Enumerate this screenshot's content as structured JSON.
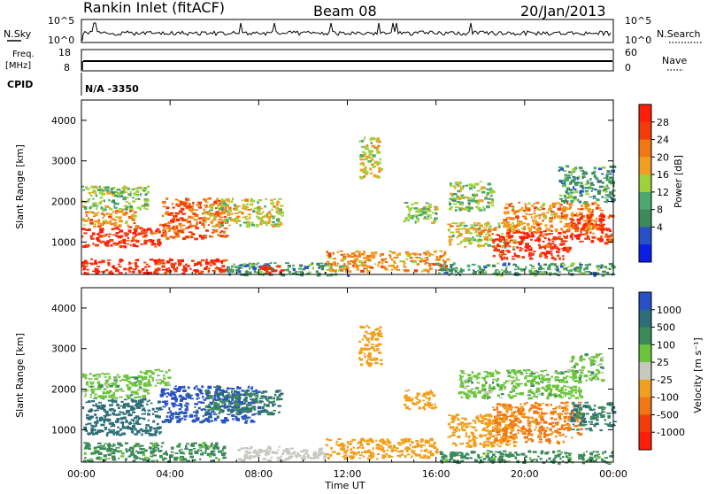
{
  "header": {
    "station": "Rankin Inlet (fitACF)",
    "beam": "Beam 08",
    "date": "20/Jan/2013"
  },
  "top_panels": {
    "nsky_label": "N.Sky",
    "nsearch_label": "N.Search",
    "noise_ticks": [
      "10^5",
      "10^0"
    ],
    "freq_label_1": "Freq.",
    "freq_label_2": "[MHz]",
    "freq_ticks": [
      "18",
      "8"
    ],
    "nave_label": "Nave",
    "nave_ticks": [
      "60",
      "0"
    ],
    "cpid_label": "CPID",
    "cpid_value": "N/A -3350"
  },
  "colors": {
    "power": [
      "#0a1ee6",
      "#2a50c8",
      "#3c8a5a",
      "#4ca86c",
      "#9ed23c",
      "#f0a01e",
      "#f07814",
      "#f03c0a",
      "#ff1e0a"
    ],
    "velocity": [
      "#2a50c8",
      "#2d6e78",
      "#3c8a5a",
      "#6cc43c",
      "#c8c8c0",
      "#f0a01e",
      "#f07814",
      "#f03c0a",
      "#ff1e0a"
    ]
  },
  "chart_data": [
    {
      "type": "heatmap",
      "name": "power",
      "ylabel": "Slant Range [km]",
      "yticks": [
        "4000",
        "3000",
        "2000",
        "1000"
      ],
      "ylim": [
        200,
        4500
      ],
      "xlim": [
        0,
        24
      ],
      "colorbar_label": "Power [dB]",
      "colorbar_ticks": [
        "28",
        "24",
        "20",
        "16",
        "12",
        "8",
        "4"
      ],
      "blobs": [
        {
          "t0": 0.0,
          "t1": 3.5,
          "r0": 900,
          "r1": 1400,
          "v": 28
        },
        {
          "t0": 0.0,
          "t1": 2.5,
          "r0": 1400,
          "r1": 1800,
          "v": 20
        },
        {
          "t0": 0.0,
          "t1": 3.0,
          "r0": 1800,
          "r1": 2400,
          "v": 12
        },
        {
          "t0": 0.0,
          "t1": 6.5,
          "r0": 250,
          "r1": 600,
          "v": 28
        },
        {
          "t0": 3.5,
          "t1": 6.5,
          "r0": 1100,
          "r1": 2100,
          "v": 24
        },
        {
          "t0": 5.5,
          "t1": 9.0,
          "r0": 1400,
          "r1": 2100,
          "v": 16
        },
        {
          "t0": 6.5,
          "t1": 12.0,
          "r0": 200,
          "r1": 500,
          "v": 8
        },
        {
          "t0": 8.0,
          "t1": 9.0,
          "r0": 250,
          "r1": 500,
          "v": 28
        },
        {
          "t0": 11.0,
          "t1": 16.5,
          "r0": 300,
          "r1": 800,
          "v": 20
        },
        {
          "t0": 12.5,
          "t1": 13.5,
          "r0": 2600,
          "r1": 3600,
          "v": 16
        },
        {
          "t0": 14.5,
          "t1": 16.0,
          "r0": 1500,
          "r1": 2000,
          "v": 12
        },
        {
          "t0": 16.5,
          "t1": 18.5,
          "r0": 1800,
          "r1": 2500,
          "v": 12
        },
        {
          "t0": 16.5,
          "t1": 19.5,
          "r0": 900,
          "r1": 1500,
          "v": 16
        },
        {
          "t0": 18.5,
          "t1": 22.0,
          "r0": 600,
          "r1": 1300,
          "v": 28
        },
        {
          "t0": 19.0,
          "t1": 23.5,
          "r0": 1300,
          "r1": 2000,
          "v": 20
        },
        {
          "t0": 22.0,
          "t1": 24.0,
          "r0": 1000,
          "r1": 1700,
          "v": 28
        },
        {
          "t0": 21.5,
          "t1": 24.0,
          "r0": 2000,
          "r1": 2900,
          "v": 8
        },
        {
          "t0": 16.0,
          "t1": 24.0,
          "r0": 200,
          "r1": 500,
          "v": 8
        }
      ]
    },
    {
      "type": "heatmap",
      "name": "velocity",
      "ylabel": "Slant Range [km]",
      "yticks": [
        "4000",
        "3000",
        "2000",
        "1000"
      ],
      "ylim": [
        200,
        4500
      ],
      "xlim": [
        0,
        24
      ],
      "colorbar_label": "Velocity [m s⁻¹]",
      "colorbar_ticks": [
        "1000",
        "500",
        "100",
        "25",
        "-25",
        "-100",
        "-500",
        "-1000"
      ],
      "blobs": [
        {
          "t0": 0.0,
          "t1": 3.5,
          "r0": 900,
          "r1": 1800,
          "v": 300
        },
        {
          "t0": 0.0,
          "t1": 3.0,
          "r0": 1800,
          "r1": 2400,
          "v": 0
        },
        {
          "t0": 3.5,
          "t1": 8.0,
          "r0": 1200,
          "r1": 2100,
          "v": 700
        },
        {
          "t0": 5.5,
          "t1": 9.0,
          "r0": 1400,
          "r1": 2000,
          "v": 100
        },
        {
          "t0": 0.0,
          "t1": 6.5,
          "r0": 250,
          "r1": 700,
          "v": 50
        },
        {
          "t0": 2.5,
          "t1": 4.0,
          "r0": 2100,
          "r1": 2500,
          "v": 0
        },
        {
          "t0": 7.0,
          "t1": 11.0,
          "r0": 250,
          "r1": 600,
          "v": -60
        },
        {
          "t0": 11.0,
          "t1": 16.0,
          "r0": 300,
          "r1": 800,
          "v": -300
        },
        {
          "t0": 12.5,
          "t1": 13.5,
          "r0": 2600,
          "r1": 3600,
          "v": -300
        },
        {
          "t0": 14.5,
          "t1": 16.0,
          "r0": 1500,
          "r1": 2000,
          "v": -300
        },
        {
          "t0": 16.5,
          "t1": 19.5,
          "r0": 600,
          "r1": 1400,
          "v": -300
        },
        {
          "t0": 17.0,
          "t1": 22.5,
          "r0": 1800,
          "r1": 2500,
          "v": 0
        },
        {
          "t0": 18.5,
          "t1": 22.5,
          "r0": 700,
          "r1": 1700,
          "v": -600
        },
        {
          "t0": 22.0,
          "t1": 24.0,
          "r0": 1000,
          "r1": 1700,
          "v": 100
        },
        {
          "t0": 22.0,
          "t1": 23.5,
          "r0": 2200,
          "r1": 2900,
          "v": 0
        },
        {
          "t0": 16.0,
          "t1": 24.0,
          "r0": 200,
          "r1": 500,
          "v": 50
        }
      ]
    }
  ],
  "xaxis": {
    "ticks": [
      "00:00",
      "04:00",
      "08:00",
      "12:00",
      "16:00",
      "20:00",
      "00:00"
    ],
    "label": "Time UT"
  }
}
